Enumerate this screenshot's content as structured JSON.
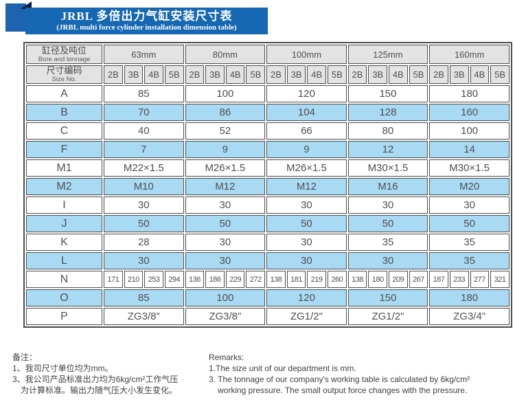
{
  "banner": {
    "title_cn": "JRBL 多倍出力气缸安装尺寸表",
    "title_en": "(JRBL multi force cylinder installation dimension table)"
  },
  "table": {
    "corner": {
      "row1_cn": "缸径及吨位",
      "row1_en": "Bore and tonnage",
      "row2_cn": "尺寸编码",
      "row2_en": "Size No."
    },
    "bore_sizes": [
      "63mm",
      "80mm",
      "100mm",
      "125mm",
      "160mm"
    ],
    "size_codes": [
      "2B",
      "3B",
      "4B",
      "5B"
    ],
    "rows": [
      {
        "label": "A",
        "type": "span",
        "values": [
          "85",
          "100",
          "120",
          "150",
          "180"
        ]
      },
      {
        "label": "B",
        "type": "span",
        "values": [
          "70",
          "86",
          "104",
          "128",
          "160"
        ]
      },
      {
        "label": "C",
        "type": "span",
        "values": [
          "40",
          "52",
          "66",
          "80",
          "100"
        ]
      },
      {
        "label": "F",
        "type": "span",
        "values": [
          "7",
          "9",
          "9",
          "12",
          "14"
        ]
      },
      {
        "label": "M1",
        "type": "span",
        "values": [
          "M22×1.5",
          "M26×1.5",
          "M26×1.5",
          "M30×1.5",
          "M30×1.5"
        ]
      },
      {
        "label": "M2",
        "type": "span",
        "values": [
          "M10",
          "M12",
          "M12",
          "M16",
          "M20"
        ]
      },
      {
        "label": "I",
        "type": "span",
        "values": [
          "30",
          "30",
          "30",
          "30",
          "30"
        ]
      },
      {
        "label": "J",
        "type": "span",
        "values": [
          "50",
          "50",
          "50",
          "50",
          "50"
        ]
      },
      {
        "label": "K",
        "type": "span",
        "values": [
          "28",
          "30",
          "30",
          "35",
          "35"
        ]
      },
      {
        "label": "L",
        "type": "span",
        "values": [
          "30",
          "30",
          "30",
          "30",
          "35"
        ]
      },
      {
        "label": "N",
        "type": "each",
        "values": [
          "171",
          "210",
          "253",
          "294",
          "136",
          "186",
          "229",
          "272",
          "138",
          "181",
          "219",
          "260",
          "138",
          "180",
          "209",
          "267",
          "187",
          "233",
          "277",
          "321"
        ]
      },
      {
        "label": "O",
        "type": "span",
        "values": [
          "85",
          "100",
          "120",
          "150",
          "180"
        ]
      },
      {
        "label": "P",
        "type": "span",
        "values": [
          "ZG3/8\"",
          "ZG3/8\"",
          "ZG1/2\"",
          "ZG1/2\"",
          "ZG3/4\""
        ]
      }
    ]
  },
  "notes_cn": {
    "title": "备注：",
    "line1": "1、我司尺寸单位均为mm。",
    "line2": "3、我公司产品标准出力均为6kg/cm²工作气压",
    "line3": "为计算标准。输出力随气压大小发生变化。"
  },
  "notes_en": {
    "title": "Remarks:",
    "line1": "1.The size unit of our department is mm.",
    "line2": "3. The tonnage of our company's working table is calculated by 6kg/cm²",
    "line3": "working pressure. The small output force changes with the pressure."
  },
  "colors": {
    "banner_blue": "#1668b3",
    "square_blue": "#1d63ad",
    "fold_navy": "#101c42",
    "header_grey": "#e3e3e3",
    "row_blue": "#a9daf3",
    "border": "#4c4c4c"
  }
}
